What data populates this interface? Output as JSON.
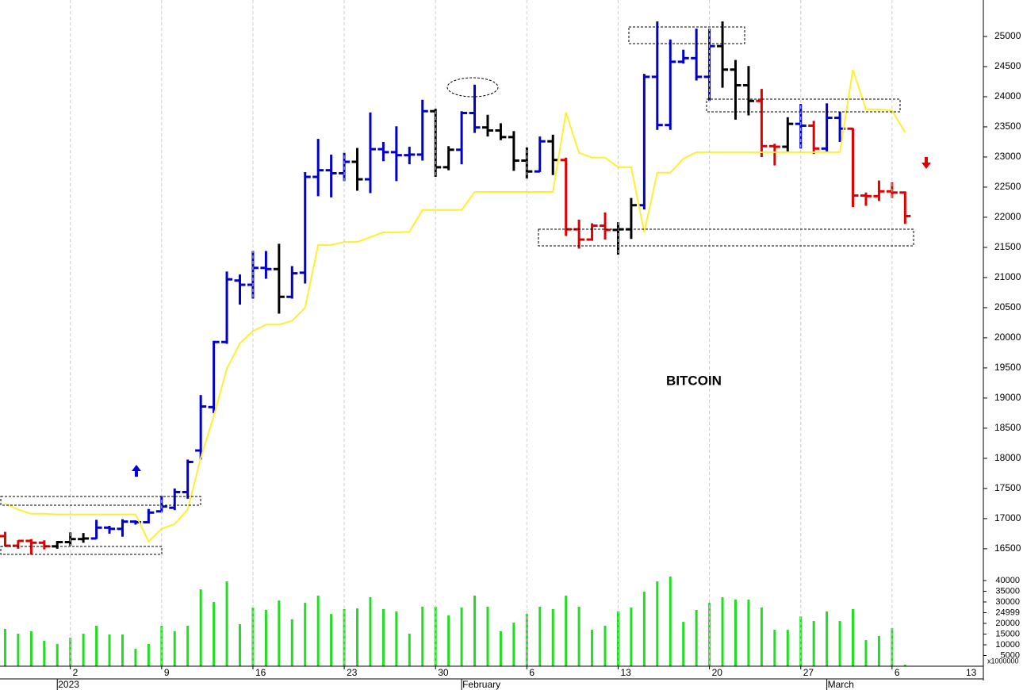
{
  "chart_data": {
    "type": "ohlc",
    "annotation": "BITCOIN",
    "xlim": [
      "2022-12-27",
      "2023-03-13"
    ],
    "xticks": [
      {
        "value": "2023-01-02",
        "label": "2"
      },
      {
        "value": "2023-01-09",
        "label": "9"
      },
      {
        "value": "2023-01-16",
        "label": "16"
      },
      {
        "value": "2023-01-23",
        "label": "23"
      },
      {
        "value": "2023-01-30",
        "label": "30"
      },
      {
        "value": "2023-02-06",
        "label": "6"
      },
      {
        "value": "2023-02-13",
        "label": "13"
      },
      {
        "value": "2023-02-20",
        "label": "20"
      },
      {
        "value": "2023-02-27",
        "label": "27"
      },
      {
        "value": "2023-03-06",
        "label": "6"
      },
      {
        "value": "2023-03-13",
        "label": "13"
      }
    ],
    "xticks_major": [
      {
        "value": "2023-01-01",
        "label": "2023"
      },
      {
        "value": "2023-02-01",
        "label": "February"
      },
      {
        "value": "2023-03-01",
        "label": "March"
      }
    ],
    "grid": true,
    "ylim": [
      16130,
      25605
    ],
    "yticks": [
      16500,
      17000,
      17500,
      18000,
      18500,
      19000,
      19500,
      20000,
      20500,
      21000,
      21500,
      22000,
      22500,
      23000,
      23500,
      24000,
      24500,
      25000
    ],
    "ohlc": {
      "x": [
        "2022-12-28",
        "2022-12-29",
        "2022-12-30",
        "2022-12-31",
        "2023-01-01",
        "2023-01-02",
        "2023-01-03",
        "2023-01-04",
        "2023-01-05",
        "2023-01-06",
        "2023-01-07",
        "2023-01-08",
        "2023-01-09",
        "2023-01-10",
        "2023-01-11",
        "2023-01-12",
        "2023-01-13",
        "2023-01-14",
        "2023-01-15",
        "2023-01-16",
        "2023-01-17",
        "2023-01-18",
        "2023-01-19",
        "2023-01-20",
        "2023-01-21",
        "2023-01-22",
        "2023-01-23",
        "2023-01-24",
        "2023-01-25",
        "2023-01-26",
        "2023-01-27",
        "2023-01-28",
        "2023-01-29",
        "2023-01-30",
        "2023-01-31",
        "2023-02-01",
        "2023-02-02",
        "2023-02-03",
        "2023-02-04",
        "2023-02-05",
        "2023-02-06",
        "2023-02-07",
        "2023-02-08",
        "2023-02-09",
        "2023-02-10",
        "2023-02-11",
        "2023-02-12",
        "2023-02-13",
        "2023-02-14",
        "2023-02-15",
        "2023-02-16",
        "2023-02-17",
        "2023-02-18",
        "2023-02-19",
        "2023-02-20",
        "2023-02-21",
        "2023-02-22",
        "2023-02-23",
        "2023-02-24",
        "2023-02-25",
        "2023-02-26",
        "2023-02-27",
        "2023-02-28",
        "2023-03-01",
        "2023-03-02",
        "2023-03-03",
        "2023-03-04",
        "2023-03-05",
        "2023-03-06",
        "2023-03-07"
      ],
      "open": [
        16710,
        16550,
        16630,
        16600,
        16540,
        16610,
        16660,
        16670,
        16850,
        16830,
        16950,
        16940,
        17120,
        17180,
        17440,
        18130,
        18850,
        19930,
        20950,
        20880,
        21160,
        21140,
        20680,
        21080,
        22670,
        22780,
        22730,
        22920,
        22630,
        23130,
        23080,
        23030,
        23040,
        23760,
        22830,
        23120,
        23730,
        23490,
        23440,
        23330,
        22940,
        22760,
        23260,
        22950,
        21800,
        21630,
        21860,
        21790,
        21800,
        22200,
        24330,
        23530,
        24580,
        24640,
        24330,
        24840,
        24450,
        24190,
        23930,
        23180,
        23170,
        23550,
        23520,
        23140,
        23650,
        23470,
        22360,
        22350,
        22430,
        22410
      ],
      "high": [
        16780,
        16640,
        16660,
        16640,
        16630,
        16770,
        16760,
        16980,
        16880,
        16990,
        16970,
        17160,
        17380,
        17500,
        17980,
        19050,
        19950,
        21100,
        21050,
        21440,
        21440,
        21560,
        21190,
        22750,
        23300,
        23040,
        23070,
        23150,
        23740,
        23250,
        23510,
        23170,
        23950,
        23800,
        23180,
        23760,
        24200,
        23700,
        23560,
        23430,
        23160,
        23340,
        23370,
        22990,
        21960,
        21900,
        22080,
        21920,
        22320,
        24380,
        25250,
        24950,
        24780,
        25130,
        25130,
        25250,
        24610,
        24510,
        24130,
        23220,
        23660,
        23880,
        23600,
        23890,
        23750,
        23480,
        22410,
        22610,
        22580,
        22430
      ],
      "low": [
        16540,
        16500,
        16400,
        16490,
        16500,
        16550,
        16600,
        16660,
        16750,
        16700,
        16900,
        16920,
        17100,
        17140,
        17330,
        17980,
        18750,
        19900,
        20550,
        20650,
        20980,
        20400,
        20650,
        20900,
        22350,
        22330,
        22600,
        22440,
        22400,
        22930,
        22600,
        22880,
        22940,
        22670,
        22780,
        22880,
        23400,
        23340,
        23280,
        22770,
        22640,
        22750,
        22700,
        21690,
        21480,
        21610,
        21630,
        21380,
        21640,
        22130,
        23450,
        23450,
        24550,
        24270,
        23930,
        24150,
        23620,
        23690,
        23000,
        22860,
        23080,
        23140,
        23050,
        23080,
        23250,
        22170,
        22190,
        22270,
        22320,
        21890
      ],
      "close": [
        16550,
        16630,
        16600,
        16540,
        16610,
        16660,
        16670,
        16850,
        16830,
        16950,
        16940,
        17100,
        17200,
        17440,
        17940,
        18860,
        19930,
        20970,
        20880,
        21160,
        21140,
        20680,
        21070,
        22670,
        22780,
        22730,
        22920,
        22630,
        23130,
        23080,
        23030,
        23040,
        23760,
        22830,
        23120,
        23730,
        23490,
        23440,
        23330,
        22940,
        22760,
        23260,
        22950,
        21800,
        21630,
        21860,
        21790,
        21800,
        22200,
        24330,
        23530,
        24580,
        24640,
        24330,
        24840,
        24450,
        24190,
        23930,
        23180,
        23170,
        23550,
        23520,
        23140,
        23650,
        23470,
        22360,
        22350,
        22430,
        22410,
        22020
      ],
      "colors": [
        "#e00000",
        "#e00000",
        "#e00000",
        "#e00000",
        "#000000",
        "#000000",
        "#000000",
        "#0000cc",
        "#0000cc",
        "#0000cc",
        "#0000cc",
        "#0000cc",
        "#0000cc",
        "#0000cc",
        "#0000cc",
        "#0000cc",
        "#0000cc",
        "#0000cc",
        "#0000cc",
        "#0000cc",
        "#0000cc",
        "#000000",
        "#0000cc",
        "#0000cc",
        "#0000cc",
        "#0000cc",
        "#0000cc",
        "#000000",
        "#0000cc",
        "#0000cc",
        "#0000cc",
        "#0000cc",
        "#0000cc",
        "#000000",
        "#000000",
        "#0000cc",
        "#0000cc",
        "#000000",
        "#000000",
        "#000000",
        "#000000",
        "#0000cc",
        "#000000",
        "#e00000",
        "#e00000",
        "#e00000",
        "#e00000",
        "#000000",
        "#000000",
        "#0000cc",
        "#0000cc",
        "#0000cc",
        "#0000cc",
        "#0000cc",
        "#0000cc",
        "#000000",
        "#000000",
        "#000000",
        "#e00000",
        "#e00000",
        "#000000",
        "#0000cc",
        "#e00000",
        "#0000cc",
        "#0000cc",
        "#e00000",
        "#e00000",
        "#e00000",
        "#e00000",
        "#e00000"
      ]
    },
    "line": {
      "color": "#ffee33",
      "values": [
        17250,
        17150,
        17080,
        17080,
        17070,
        17070,
        17070,
        17070,
        17070,
        17070,
        17070,
        16620,
        16830,
        16910,
        17150,
        18010,
        18700,
        19490,
        19910,
        20110,
        20220,
        20220,
        20280,
        20500,
        21540,
        21540,
        21590,
        21590,
        21670,
        21750,
        21750,
        21760,
        22120,
        22120,
        22120,
        22120,
        22420,
        22420,
        22420,
        22420,
        22420,
        22420,
        22420,
        23740,
        23070,
        22990,
        22990,
        22830,
        22830,
        21750,
        22740,
        22740,
        22970,
        23080,
        23080,
        23080,
        23080,
        23080,
        23080,
        23080,
        23080,
        23080,
        23080,
        23080,
        23080,
        24450,
        23790,
        23790,
        23770,
        23410
      ]
    },
    "volume": {
      "color": "#22dd22",
      "scale_label": "x1000000",
      "ylim": [
        0,
        42600
      ],
      "yticks": [
        5000,
        10000,
        15000,
        20000,
        24999,
        30000,
        35000,
        40000
      ],
      "values": [
        17400,
        15200,
        16300,
        11900,
        10400,
        13300,
        15200,
        18900,
        14800,
        14800,
        8100,
        10400,
        18900,
        16300,
        18900,
        35900,
        30000,
        39600,
        19600,
        27400,
        26300,
        30700,
        21900,
        29600,
        33000,
        24400,
        26700,
        27000,
        32200,
        26700,
        25600,
        15200,
        27800,
        27800,
        23700,
        27400,
        33000,
        27800,
        16300,
        20400,
        24400,
        27800,
        26700,
        33000,
        27800,
        17000,
        18900,
        25600,
        27400,
        34800,
        39600,
        41900,
        20700,
        26300,
        29600,
        32200,
        31100,
        31100,
        27400,
        17000,
        17000,
        23300,
        21100,
        25600,
        21100,
        26700,
        12200,
        14100,
        17800,
        700
      ]
    }
  }
}
